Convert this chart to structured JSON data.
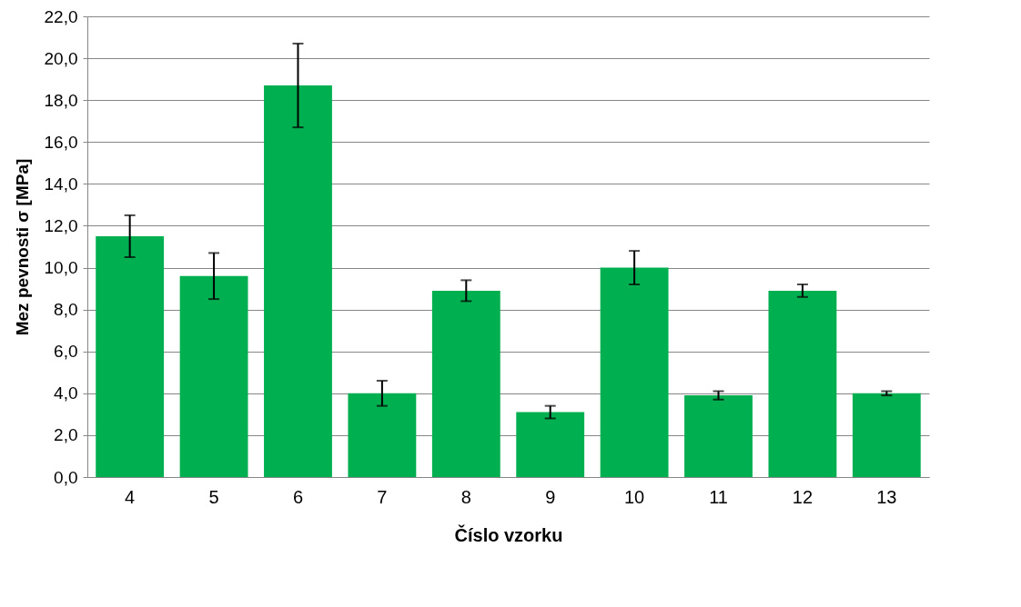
{
  "chart_data": {
    "type": "bar",
    "xlabel": "Číslo vzorku",
    "ylabel": "Mez pevnosti σ [MPa]",
    "categories": [
      "4",
      "5",
      "6",
      "7",
      "8",
      "9",
      "10",
      "11",
      "12",
      "13"
    ],
    "values": [
      11.5,
      9.6,
      18.7,
      4.0,
      8.9,
      3.1,
      10.0,
      3.9,
      8.9,
      4.0
    ],
    "errors": [
      1.0,
      1.1,
      2.0,
      0.6,
      0.5,
      0.3,
      0.8,
      0.2,
      0.3,
      0.1
    ],
    "color": "#00b050",
    "ylim": [
      0,
      22
    ],
    "yticks": [
      {
        "value": 0,
        "label": "0,0"
      },
      {
        "value": 2,
        "label": "2,0"
      },
      {
        "value": 4,
        "label": "4,0"
      },
      {
        "value": 6,
        "label": "6,0"
      },
      {
        "value": 8,
        "label": "8,0"
      },
      {
        "value": 10,
        "label": "10,0"
      },
      {
        "value": 12,
        "label": "12,0"
      },
      {
        "value": 14,
        "label": "14,0"
      },
      {
        "value": 16,
        "label": "16,0"
      },
      {
        "value": 18,
        "label": "18,0"
      },
      {
        "value": 20,
        "label": "20,0"
      },
      {
        "value": 22,
        "label": "22,0"
      }
    ],
    "grid": "y"
  }
}
